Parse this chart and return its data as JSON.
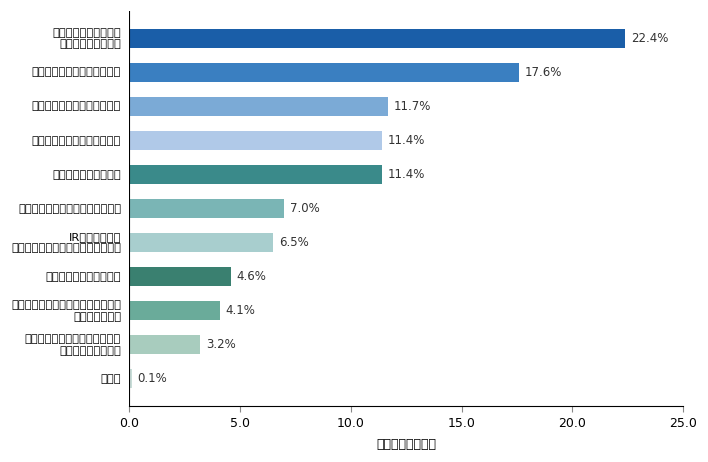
{
  "categories": [
    "株主還元に関する情報\n（配当、株主優待）",
    "中長期的な目標や戦略の説明",
    "決算、業績報告の解説・充実",
    "新規事業に関するトピックス",
    "会社の事業内容の紹介",
    "社長など経営層からのメッセージ",
    "IRカレンダーや\n株主アンケート結果などのお知らせ",
    "社員や取引先などの紹介",
    "サステナビリティ（持続可能性）に\n関する活動紹介",
    "職場環境や女性活躍推進など、\n事業以外の企業活動",
    "その他"
  ],
  "values": [
    22.4,
    17.6,
    11.7,
    11.4,
    11.4,
    7.0,
    6.5,
    4.6,
    4.1,
    3.2,
    0.1
  ],
  "colors": [
    "#1a5ea8",
    "#3a7fc1",
    "#7baad6",
    "#b0c9e8",
    "#3a8a8a",
    "#7ab5b5",
    "#a8cece",
    "#3a8070",
    "#6aab9a",
    "#a8ccbe",
    "#c8ddd8"
  ],
  "xlabel": "回答構成比（％）",
  "xlim": [
    0,
    25.0
  ],
  "xticks": [
    0.0,
    5.0,
    10.0,
    15.0,
    20.0,
    25.0
  ],
  "value_labels": [
    "22.4%",
    "17.6%",
    "11.7%",
    "11.4%",
    "11.4%",
    "7.0%",
    "6.5%",
    "4.6%",
    "4.1%",
    "3.2%",
    "0.1%"
  ],
  "bar_height": 0.55,
  "figsize": [
    7.08,
    4.62
  ],
  "dpi": 100
}
